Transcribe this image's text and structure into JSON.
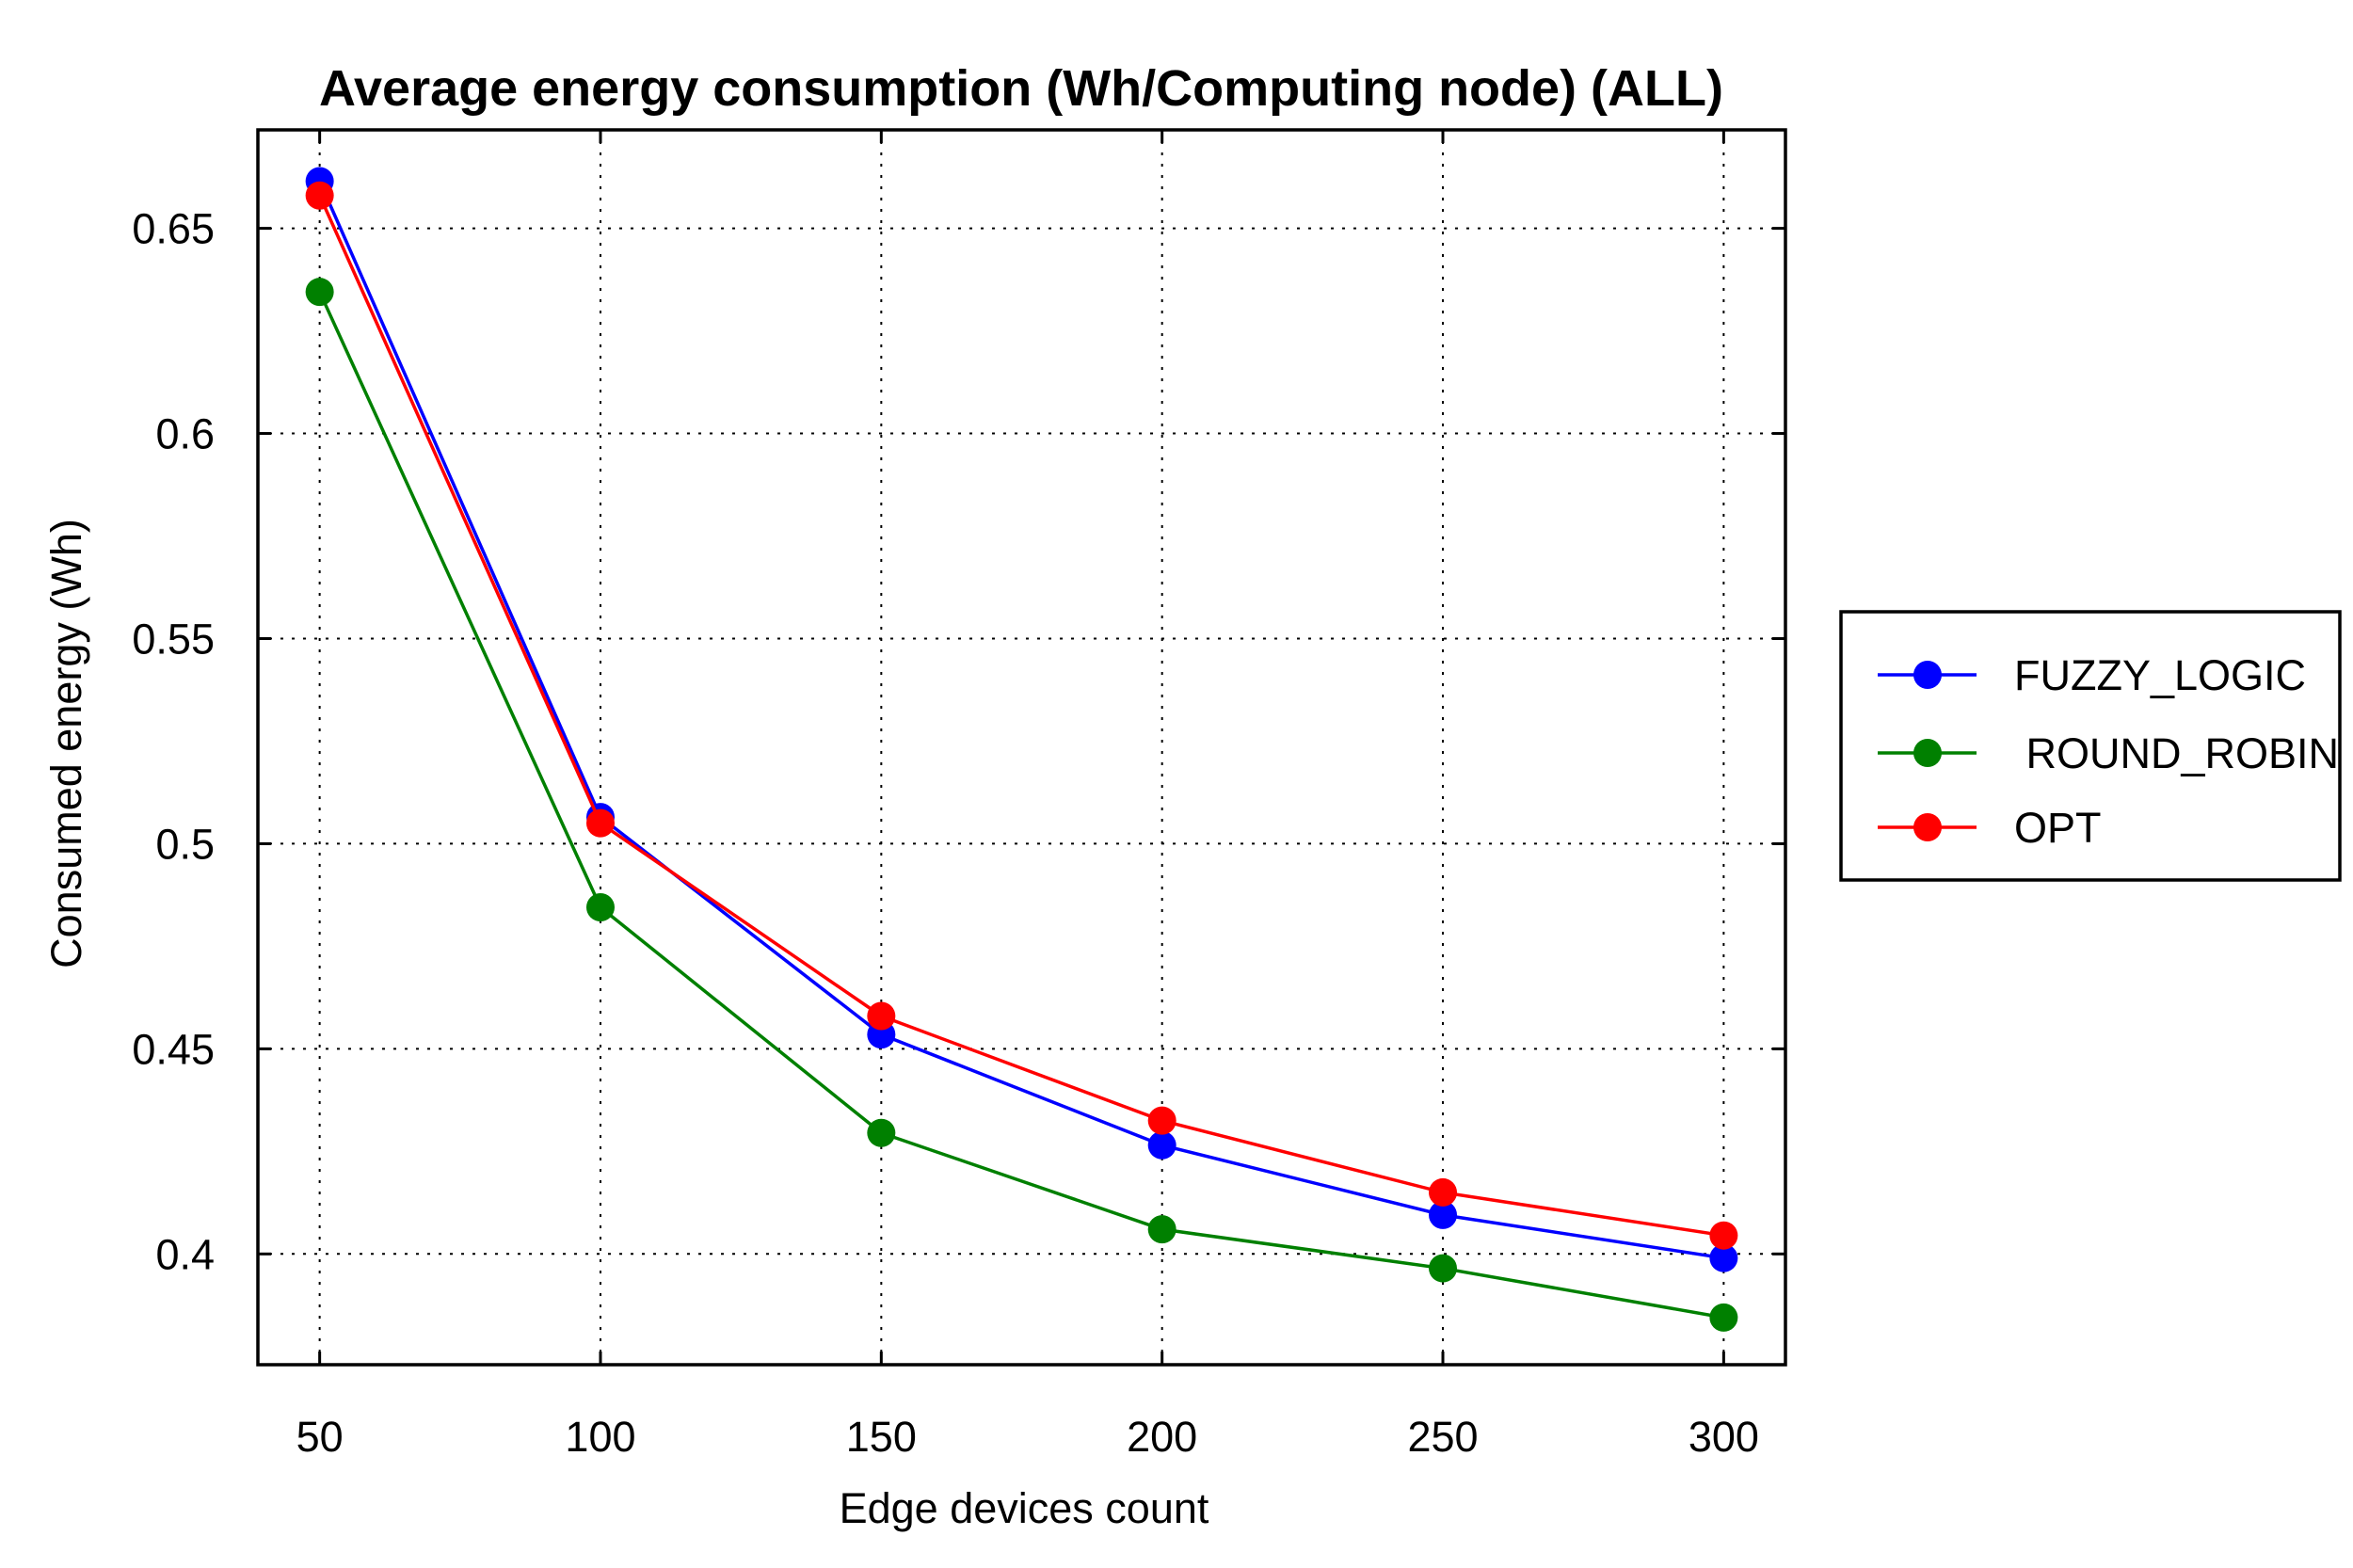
{
  "chart_data": {
    "type": "line",
    "title": "Average energy consumption (Wh/Computing node) (ALL)",
    "xlabel": "Edge devices count",
    "ylabel": "Consumed energy (Wh)",
    "x": [
      50,
      100,
      150,
      200,
      250,
      300
    ],
    "x_tick_labels": [
      "50",
      "100",
      "150",
      "200",
      "250",
      "300"
    ],
    "xlim": [
      39,
      311
    ],
    "y_ticks": [
      0.4,
      0.45,
      0.5,
      0.55,
      0.6,
      0.65
    ],
    "y_tick_labels": [
      "0.4",
      "0.45",
      "0.5",
      "0.55",
      "0.6",
      "0.65"
    ],
    "ylim": [
      0.373,
      0.674
    ],
    "grid": true,
    "legend_position": "outside-right",
    "series": [
      {
        "name": "FUZZY_LOGIC",
        "color": "#0000ff",
        "values": [
          0.6615,
          0.5065,
          0.4535,
          0.4265,
          0.4095,
          0.399
        ]
      },
      {
        "name": " ROUND_ROBIN",
        "color": "#008000",
        "values": [
          0.6345,
          0.4845,
          0.4295,
          0.406,
          0.3965,
          0.3845
        ]
      },
      {
        "name": "OPT",
        "color": "#ff0000",
        "values": [
          0.658,
          0.505,
          0.458,
          0.4325,
          0.415,
          0.4045
        ]
      }
    ]
  }
}
